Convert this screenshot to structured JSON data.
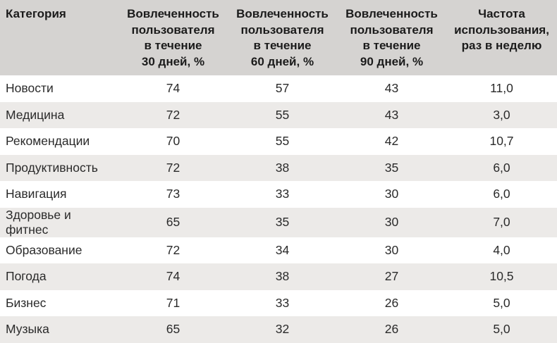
{
  "table": {
    "headers": [
      "Категория",
      "Вовлеченность\nпользователя\nв течение\n30 дней, %",
      "Вовлеченность\nпользователя\nв течение\n60 дней, %",
      "Вовлеченность\nпользователя\nв течение\n90 дней, %",
      "Частота\nиспользования,\nраз в неделю"
    ],
    "rows": [
      [
        "Новости",
        "74",
        "57",
        "43",
        "11,0"
      ],
      [
        "Медицина",
        "72",
        "55",
        "43",
        "3,0"
      ],
      [
        "Рекомендации",
        "70",
        "55",
        "42",
        "10,7"
      ],
      [
        "Продуктивность",
        "72",
        "38",
        "35",
        "6,0"
      ],
      [
        "Навигация",
        "73",
        "33",
        "30",
        "6,0"
      ],
      [
        "Здоровье и фитнес",
        "65",
        "35",
        "30",
        "7,0"
      ],
      [
        "Образование",
        "72",
        "34",
        "30",
        "4,0"
      ],
      [
        "Погода",
        "74",
        "38",
        "27",
        "10,5"
      ],
      [
        "Бизнес",
        "71",
        "33",
        "26",
        "5,0"
      ],
      [
        "Музыка",
        "65",
        "32",
        "26",
        "5,0"
      ]
    ]
  },
  "colors": {
    "header_bg": "#d5d3d1",
    "stripe_bg": "#eceae8",
    "header_text": "#1b1b1b",
    "cell_text": "#2a2a2a",
    "page_bg": "#ffffff"
  },
  "chart_data": {
    "type": "table",
    "columns": [
      "Категория",
      "Вовлеченность пользователя в течение 30 дней, %",
      "Вовлеченность пользователя в течение 60 дней, %",
      "Вовлеченность пользователя в течение 90 дней, %",
      "Частота использования, раз в неделю"
    ],
    "rows": [
      [
        "Новости",
        74,
        57,
        43,
        11.0
      ],
      [
        "Медицина",
        72,
        55,
        43,
        3.0
      ],
      [
        "Рекомендации",
        70,
        55,
        42,
        10.7
      ],
      [
        "Продуктивность",
        72,
        38,
        35,
        6.0
      ],
      [
        "Навигация",
        73,
        33,
        30,
        6.0
      ],
      [
        "Здоровье и фитнес",
        65,
        35,
        30,
        7.0
      ],
      [
        "Образование",
        72,
        34,
        30,
        4.0
      ],
      [
        "Погода",
        74,
        38,
        27,
        10.5
      ],
      [
        "Бизнес",
        71,
        33,
        26,
        5.0
      ],
      [
        "Музыка",
        65,
        32,
        26,
        5.0
      ]
    ]
  }
}
